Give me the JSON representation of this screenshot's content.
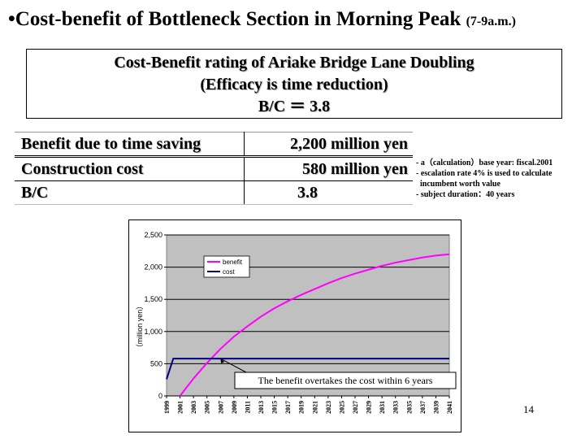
{
  "slide": {
    "title_bullet": "•",
    "title": "Cost-benefit of Bottleneck Section in Morning Peak",
    "title_sub": "(7-9a.m.)",
    "page_number": "14"
  },
  "rating_box": {
    "line1": "Cost-Benefit rating of Ariake Bridge Lane Doubling",
    "line2": "(Efficacy is time reduction)",
    "line3": "B/C ＝ 3.8"
  },
  "table": {
    "rows": [
      {
        "label": "Benefit due to time saving",
        "value": "2,200 million yen"
      },
      {
        "label": "Construction cost",
        "value": "580 million yen"
      },
      {
        "label": "B/C",
        "value": "3.8"
      }
    ]
  },
  "notes": [
    "- a（calculation）base year: fiscal.2001",
    "- escalation rate 4% is used to calculate",
    "  incumbent worth value",
    "- subject duration：40 years"
  ],
  "chart_data": {
    "type": "line",
    "ylabel": "（million yen）",
    "xlabel": "",
    "ylim": [
      0,
      2500
    ],
    "yticks": [
      0,
      500,
      1000,
      1500,
      2000,
      2500
    ],
    "ytick_labels": [
      "0",
      "500",
      "1,000",
      "1,500",
      "2,000",
      "2,500"
    ],
    "xlim": [
      1999,
      2041
    ],
    "xticks": [
      "1999",
      "2001",
      "2003",
      "2005",
      "2007",
      "2009",
      "2011",
      "2013",
      "2015",
      "2017",
      "2019",
      "2021",
      "2023",
      "2025",
      "2027",
      "2029",
      "2031",
      "2033",
      "2035",
      "2037",
      "2039",
      "2041"
    ],
    "grid": true,
    "legend": "upper-left",
    "series": [
      {
        "name": "benefit",
        "color": "#ff00ff",
        "x": [
          2001,
          2003,
          2005,
          2007,
          2009,
          2011,
          2013,
          2015,
          2017,
          2019,
          2021,
          2023,
          2025,
          2027,
          2029,
          2031,
          2033,
          2035,
          2037,
          2039,
          2041
        ],
        "values": [
          0,
          270,
          510,
          730,
          920,
          1080,
          1230,
          1360,
          1470,
          1570,
          1660,
          1750,
          1830,
          1900,
          1960,
          2020,
          2070,
          2110,
          2150,
          2180,
          2200
        ]
      },
      {
        "name": "cost",
        "color": "#000080",
        "x": [
          1999,
          2000,
          2001,
          2041
        ],
        "values": [
          260,
          580,
          580,
          580
        ]
      }
    ],
    "annotation": {
      "text": "The benefit overtakes the cost within 6 years",
      "x": 2007,
      "y": 580
    }
  }
}
